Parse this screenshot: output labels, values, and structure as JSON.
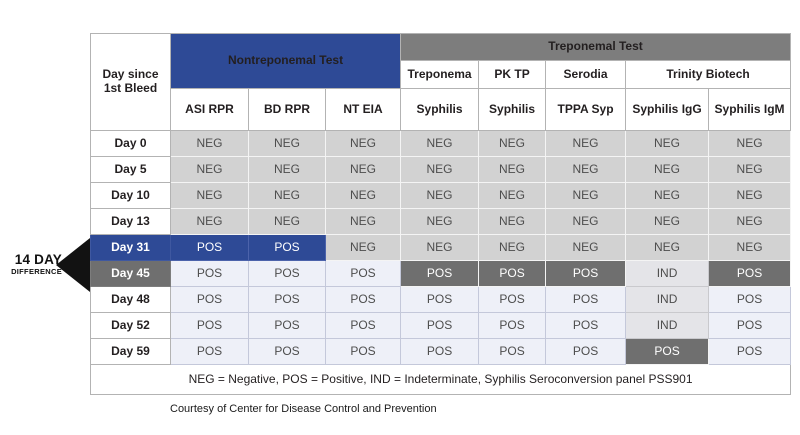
{
  "annotation": {
    "line1": "14 DAY",
    "line2": "DIFFERENCE"
  },
  "table": {
    "corner_header": "Day since 1st Bleed",
    "group_headers": {
      "nontreponemal": "Nontreponemal Test",
      "treponemal": "Treponemal Test"
    },
    "vendor_headers": [
      "Treponema",
      "PK TP",
      "Serodia",
      "Trinity Biotech"
    ],
    "test_headers": [
      "ASI RPR",
      "BD RPR",
      "NT EIA",
      "Syphilis",
      "Syphilis",
      "TPPA Syp",
      "Syphilis IgG",
      "Syphilis IgM"
    ],
    "rows": [
      {
        "day": "Day 0",
        "day_style": "plain",
        "cells": [
          {
            "value": "NEG",
            "style": "neg"
          },
          {
            "value": "NEG",
            "style": "neg"
          },
          {
            "value": "NEG",
            "style": "neg"
          },
          {
            "value": "NEG",
            "style": "neg"
          },
          {
            "value": "NEG",
            "style": "neg"
          },
          {
            "value": "NEG",
            "style": "neg"
          },
          {
            "value": "NEG",
            "style": "neg"
          },
          {
            "value": "NEG",
            "style": "neg"
          }
        ]
      },
      {
        "day": "Day 5",
        "day_style": "plain",
        "cells": [
          {
            "value": "NEG",
            "style": "neg"
          },
          {
            "value": "NEG",
            "style": "neg"
          },
          {
            "value": "NEG",
            "style": "neg"
          },
          {
            "value": "NEG",
            "style": "neg"
          },
          {
            "value": "NEG",
            "style": "neg"
          },
          {
            "value": "NEG",
            "style": "neg"
          },
          {
            "value": "NEG",
            "style": "neg"
          },
          {
            "value": "NEG",
            "style": "neg"
          }
        ]
      },
      {
        "day": "Day 10",
        "day_style": "plain",
        "cells": [
          {
            "value": "NEG",
            "style": "neg"
          },
          {
            "value": "NEG",
            "style": "neg"
          },
          {
            "value": "NEG",
            "style": "neg"
          },
          {
            "value": "NEG",
            "style": "neg"
          },
          {
            "value": "NEG",
            "style": "neg"
          },
          {
            "value": "NEG",
            "style": "neg"
          },
          {
            "value": "NEG",
            "style": "neg"
          },
          {
            "value": "NEG",
            "style": "neg"
          }
        ]
      },
      {
        "day": "Day 13",
        "day_style": "plain",
        "cells": [
          {
            "value": "NEG",
            "style": "neg"
          },
          {
            "value": "NEG",
            "style": "neg"
          },
          {
            "value": "NEG",
            "style": "neg"
          },
          {
            "value": "NEG",
            "style": "neg"
          },
          {
            "value": "NEG",
            "style": "neg"
          },
          {
            "value": "NEG",
            "style": "neg"
          },
          {
            "value": "NEG",
            "style": "neg"
          },
          {
            "value": "NEG",
            "style": "neg"
          }
        ]
      },
      {
        "day": "Day 31",
        "day_style": "blue",
        "cells": [
          {
            "value": "POS",
            "style": "posB"
          },
          {
            "value": "POS",
            "style": "posB"
          },
          {
            "value": "NEG",
            "style": "neg"
          },
          {
            "value": "NEG",
            "style": "neg"
          },
          {
            "value": "NEG",
            "style": "neg"
          },
          {
            "value": "NEG",
            "style": "neg"
          },
          {
            "value": "NEG",
            "style": "neg"
          },
          {
            "value": "NEG",
            "style": "neg"
          }
        ]
      },
      {
        "day": "Day 45",
        "day_style": "dark",
        "cells": [
          {
            "value": "POS",
            "style": "posL"
          },
          {
            "value": "POS",
            "style": "posL"
          },
          {
            "value": "POS",
            "style": "posL"
          },
          {
            "value": "POS",
            "style": "posD"
          },
          {
            "value": "POS",
            "style": "posD"
          },
          {
            "value": "POS",
            "style": "posD"
          },
          {
            "value": "IND",
            "style": "ind"
          },
          {
            "value": "POS",
            "style": "posD"
          }
        ]
      },
      {
        "day": "Day 48",
        "day_style": "plain",
        "cells": [
          {
            "value": "POS",
            "style": "posL"
          },
          {
            "value": "POS",
            "style": "posL"
          },
          {
            "value": "POS",
            "style": "posL"
          },
          {
            "value": "POS",
            "style": "posL"
          },
          {
            "value": "POS",
            "style": "posL"
          },
          {
            "value": "POS",
            "style": "posL"
          },
          {
            "value": "IND",
            "style": "ind"
          },
          {
            "value": "POS",
            "style": "posL"
          }
        ]
      },
      {
        "day": "Day 52",
        "day_style": "plain",
        "cells": [
          {
            "value": "POS",
            "style": "posL"
          },
          {
            "value": "POS",
            "style": "posL"
          },
          {
            "value": "POS",
            "style": "posL"
          },
          {
            "value": "POS",
            "style": "posL"
          },
          {
            "value": "POS",
            "style": "posL"
          },
          {
            "value": "POS",
            "style": "posL"
          },
          {
            "value": "IND",
            "style": "ind"
          },
          {
            "value": "POS",
            "style": "posL"
          }
        ]
      },
      {
        "day": "Day 59",
        "day_style": "plain",
        "cells": [
          {
            "value": "POS",
            "style": "posL"
          },
          {
            "value": "POS",
            "style": "posL"
          },
          {
            "value": "POS",
            "style": "posL"
          },
          {
            "value": "POS",
            "style": "posL"
          },
          {
            "value": "POS",
            "style": "posL"
          },
          {
            "value": "POS",
            "style": "posL"
          },
          {
            "value": "POS",
            "style": "posD"
          },
          {
            "value": "POS",
            "style": "posL"
          }
        ]
      }
    ],
    "legend": "NEG = Negative, POS = Positive, IND = Indeterminate, Syphilis Seroconversion panel PSS901"
  },
  "caption": "Courtesy of Center for Disease Control and Prevention",
  "colors": {
    "nontreponemal_blue": "#2e4a96",
    "treponemal_gray": "#7d7d7d",
    "highlight_dark_gray": "#6f6f6f",
    "neg_cell_gray": "#d2d2d2",
    "pos_light_cell": "#eef0f8",
    "ind_cell": "#e4e4e8"
  },
  "chart_data": {
    "type": "table",
    "title": "Syphilis Seroconversion panel PSS901",
    "column_groups": [
      {
        "label": "Nontreponemal Test",
        "span": 3
      },
      {
        "label": "Treponemal Test",
        "span": 5
      }
    ],
    "columns": [
      "Day since 1st Bleed",
      "ASI RPR",
      "BD RPR",
      "NT EIA",
      "Treponema Syphilis",
      "PK TP Syphilis",
      "Serodia TPPA Syp",
      "Trinity Biotech Syphilis IgG",
      "Trinity Biotech Syphilis IgM"
    ],
    "rows": [
      [
        "Day 0",
        "NEG",
        "NEG",
        "NEG",
        "NEG",
        "NEG",
        "NEG",
        "NEG",
        "NEG"
      ],
      [
        "Day 5",
        "NEG",
        "NEG",
        "NEG",
        "NEG",
        "NEG",
        "NEG",
        "NEG",
        "NEG"
      ],
      [
        "Day 10",
        "NEG",
        "NEG",
        "NEG",
        "NEG",
        "NEG",
        "NEG",
        "NEG",
        "NEG"
      ],
      [
        "Day 13",
        "NEG",
        "NEG",
        "NEG",
        "NEG",
        "NEG",
        "NEG",
        "NEG",
        "NEG"
      ],
      [
        "Day 31",
        "POS",
        "POS",
        "NEG",
        "NEG",
        "NEG",
        "NEG",
        "NEG",
        "NEG"
      ],
      [
        "Day 45",
        "POS",
        "POS",
        "POS",
        "POS",
        "POS",
        "POS",
        "IND",
        "POS"
      ],
      [
        "Day 48",
        "POS",
        "POS",
        "POS",
        "POS",
        "POS",
        "POS",
        "IND",
        "POS"
      ],
      [
        "Day 52",
        "POS",
        "POS",
        "POS",
        "POS",
        "POS",
        "POS",
        "IND",
        "POS"
      ],
      [
        "Day 59",
        "POS",
        "POS",
        "POS",
        "POS",
        "POS",
        "POS",
        "POS",
        "POS"
      ]
    ],
    "annotations": [
      "14 DAY DIFFERENCE marker between Day 31 and Day 45"
    ],
    "legend_note": "NEG = Negative, POS = Positive, IND = Indeterminate, Syphilis Seroconversion panel PSS901"
  }
}
